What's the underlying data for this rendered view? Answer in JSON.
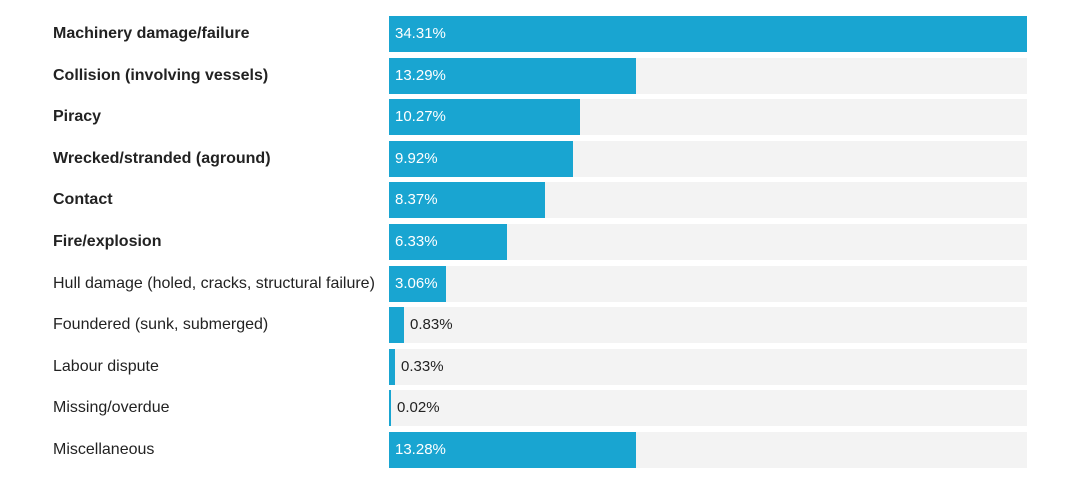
{
  "chart_data": {
    "type": "bar",
    "orientation": "horizontal",
    "unit": "%",
    "bar_color": "#19a5d1",
    "track_color": "#f3f3f3",
    "xlim": [
      0,
      34.31
    ],
    "categories": [
      "Machinery damage/failure",
      "Collision (involving vessels)",
      "Piracy",
      "Wrecked/stranded (aground)",
      "Contact",
      "Fire/explosion",
      "Hull damage (holed, cracks, structural failure)",
      "Foundered (sunk, submerged)",
      "Labour dispute",
      "Missing/overdue",
      "Miscellaneous"
    ],
    "values": [
      34.31,
      13.29,
      10.27,
      9.92,
      8.37,
      6.33,
      3.06,
      0.83,
      0.33,
      0.02,
      13.28
    ],
    "value_labels": [
      "34.31%",
      "13.29%",
      "10.27%",
      "9.92%",
      "8.37%",
      "6.33%",
      "3.06%",
      "0.83%",
      "0.33%",
      "0.02%",
      "13.28%"
    ],
    "bold_categories": [
      true,
      true,
      true,
      true,
      true,
      true,
      false,
      false,
      false,
      false,
      false
    ]
  }
}
